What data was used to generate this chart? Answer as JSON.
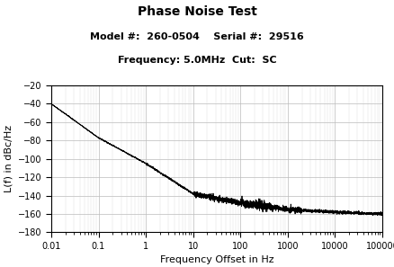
{
  "title": "Phase Noise Test",
  "subtitle1": "Model #:  260-0504    Serial #:  29516",
  "subtitle2": "Frequency: 5.0MHz  Cut:  SC",
  "xlabel": "Frequency Offset in Hz",
  "ylabel": "L(f) in dBc/Hz",
  "xlim": [
    0.01,
    100000
  ],
  "ylim": [
    -180,
    -20
  ],
  "yticks": [
    -20,
    -40,
    -60,
    -80,
    -100,
    -120,
    -140,
    -160,
    -180
  ],
  "xticks": [
    0.01,
    0.1,
    1,
    10,
    100,
    1000,
    10000,
    100000
  ],
  "xticklabels": [
    "0.01",
    "0.1",
    "1",
    "10",
    "100",
    "1000",
    "10000",
    "100000"
  ],
  "line_color": "#000000",
  "bg_color": "#ffffff",
  "grid_color": "#bbbbbb",
  "title_fontsize": 10,
  "subtitle_fontsize": 8,
  "axis_label_fontsize": 8,
  "tick_fontsize": 7,
  "curve_points": {
    "freqs_log": [
      -2,
      -1,
      0,
      1,
      2,
      3,
      4,
      5
    ],
    "values": [
      -40,
      -77,
      -105,
      -138,
      -148,
      -155,
      -158,
      -160
    ]
  }
}
